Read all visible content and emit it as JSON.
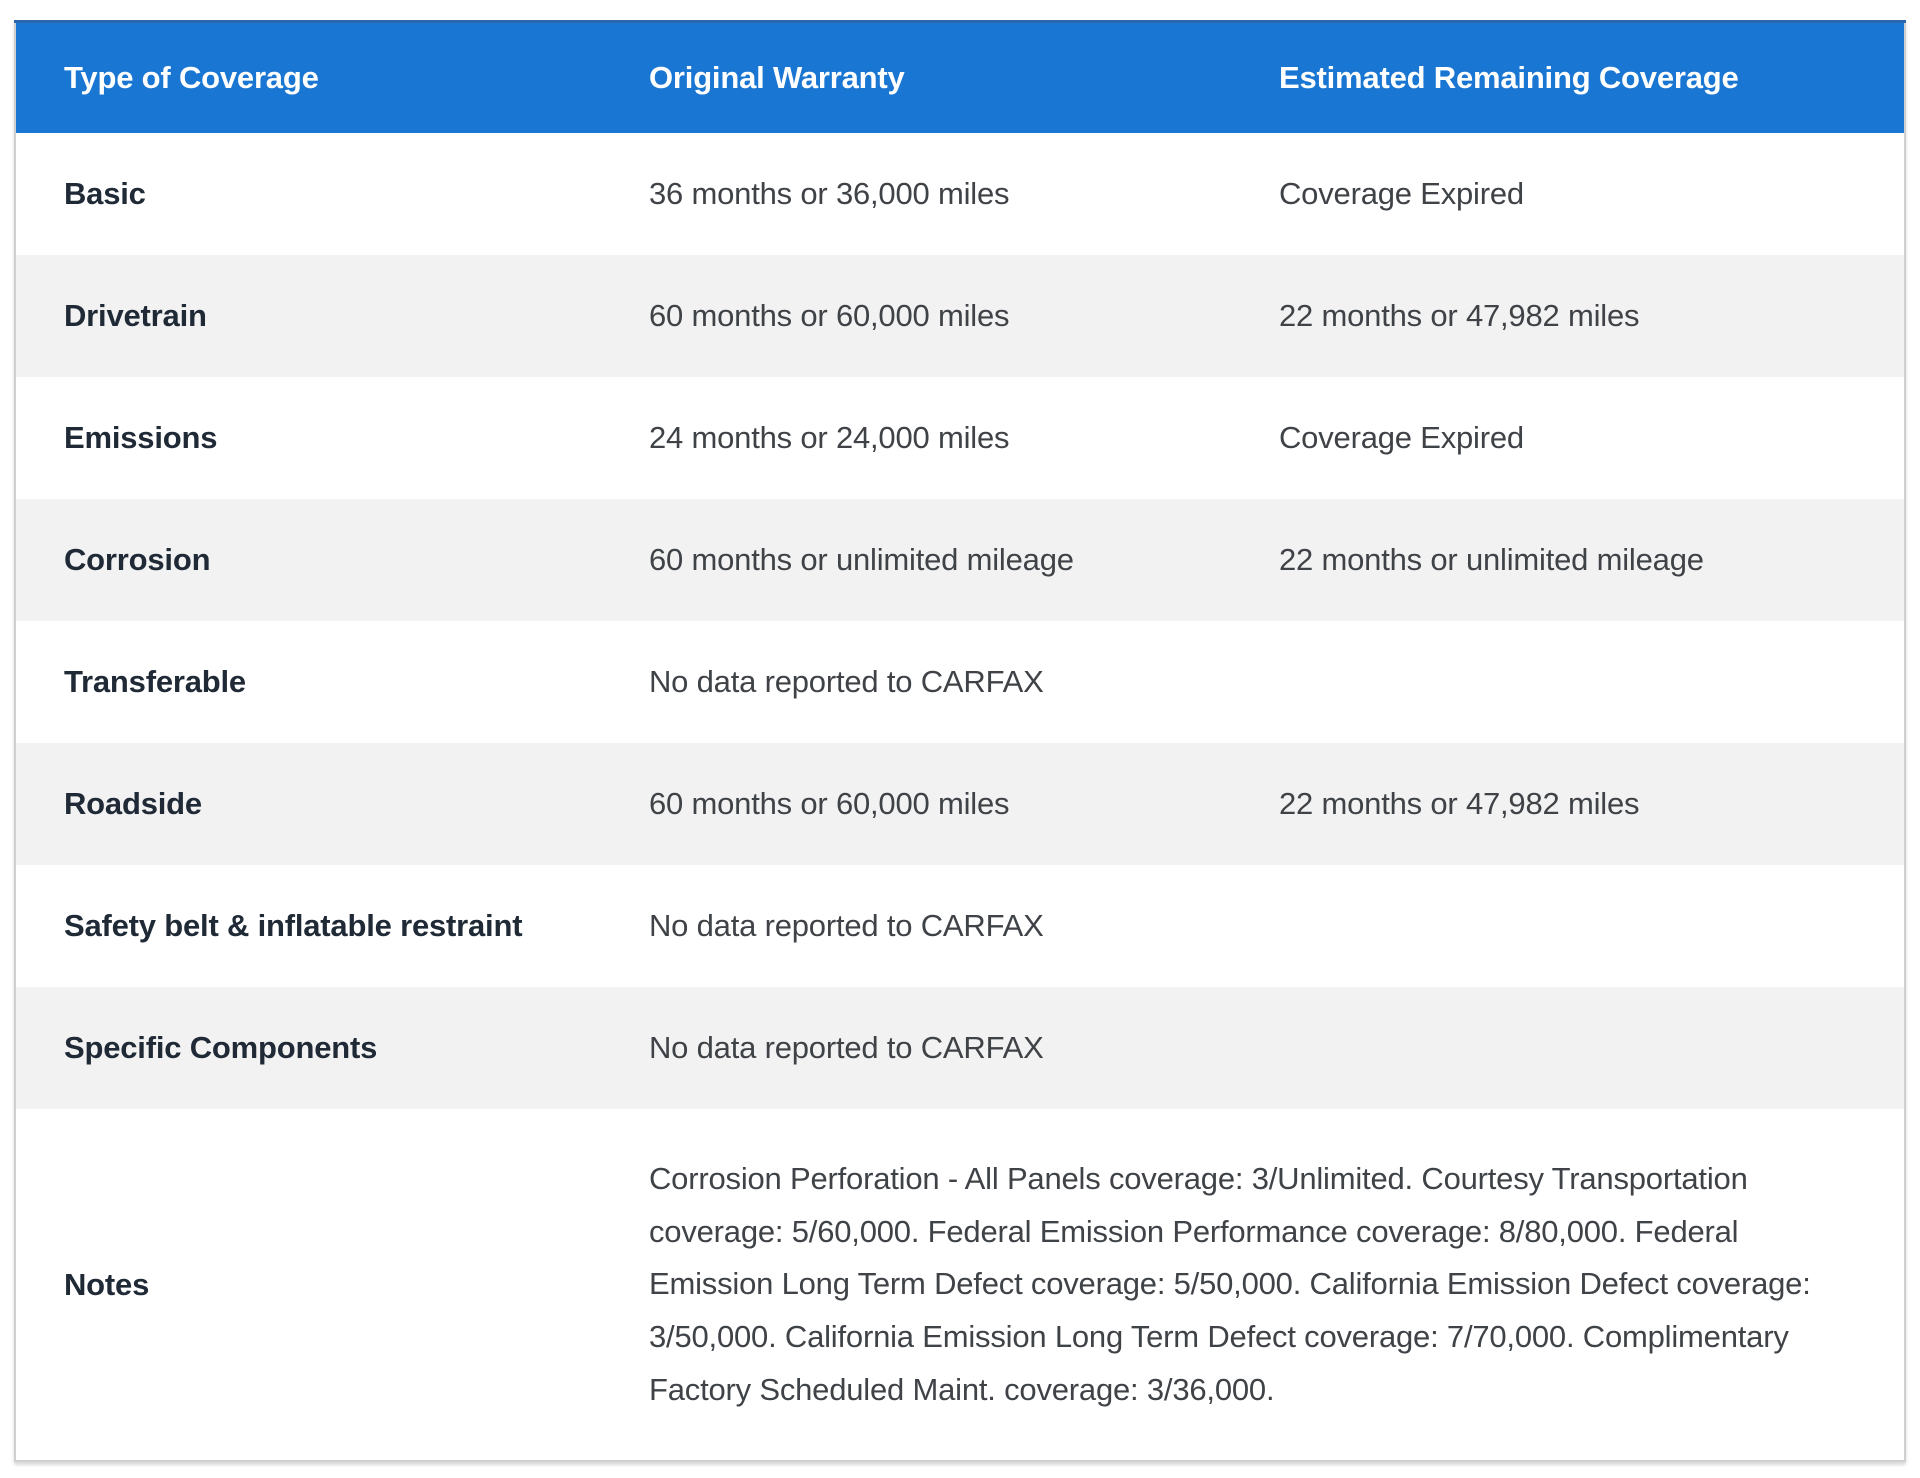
{
  "table": {
    "columns": [
      "Type of Coverage",
      "Original Warranty",
      "Estimated Remaining Coverage"
    ],
    "rows": [
      {
        "type": "Basic",
        "original": "36 months or 36,000 miles",
        "remaining": "Coverage Expired"
      },
      {
        "type": "Drivetrain",
        "original": "60 months or 60,000 miles",
        "remaining": "22 months or 47,982 miles"
      },
      {
        "type": "Emissions",
        "original": "24 months or 24,000 miles",
        "remaining": "Coverage Expired"
      },
      {
        "type": "Corrosion",
        "original": "60 months or unlimited mileage",
        "remaining": "22 months or unlimited mileage"
      },
      {
        "type": "Transferable",
        "original": "No data reported to CARFAX",
        "remaining": ""
      },
      {
        "type": "Roadside",
        "original": "60 months or 60,000 miles",
        "remaining": "22 months or 47,982 miles"
      },
      {
        "type": "Safety belt & inflatable restraint",
        "original": "No data reported to CARFAX",
        "remaining": ""
      },
      {
        "type": "Specific Components",
        "original": "No data reported to CARFAX",
        "remaining": ""
      }
    ],
    "notes_label": "Notes",
    "notes_text": "Corrosion Perforation - All Panels coverage: 3/Unlimited. Courtesy Transportation coverage: 5/60,000. Federal Emission Performance coverage: 8/80,000. Federal Emission Long Term Defect coverage: 5/50,000. California Emission Defect coverage: 3/50,000. California Emission Long Term Defect coverage: 7/70,000. Complimentary Factory Scheduled Maint. coverage: 3/36,000."
  },
  "colors": {
    "header_bg": "#1976d2",
    "header_top_edge": "#2a68ab",
    "header_text": "#ffffff",
    "row_alt_bg": "#f2f2f2",
    "row_bg": "#ffffff",
    "label_text": "#1f2a36",
    "cell_text": "#3f4347",
    "outer_border": "#cfcfcf"
  }
}
